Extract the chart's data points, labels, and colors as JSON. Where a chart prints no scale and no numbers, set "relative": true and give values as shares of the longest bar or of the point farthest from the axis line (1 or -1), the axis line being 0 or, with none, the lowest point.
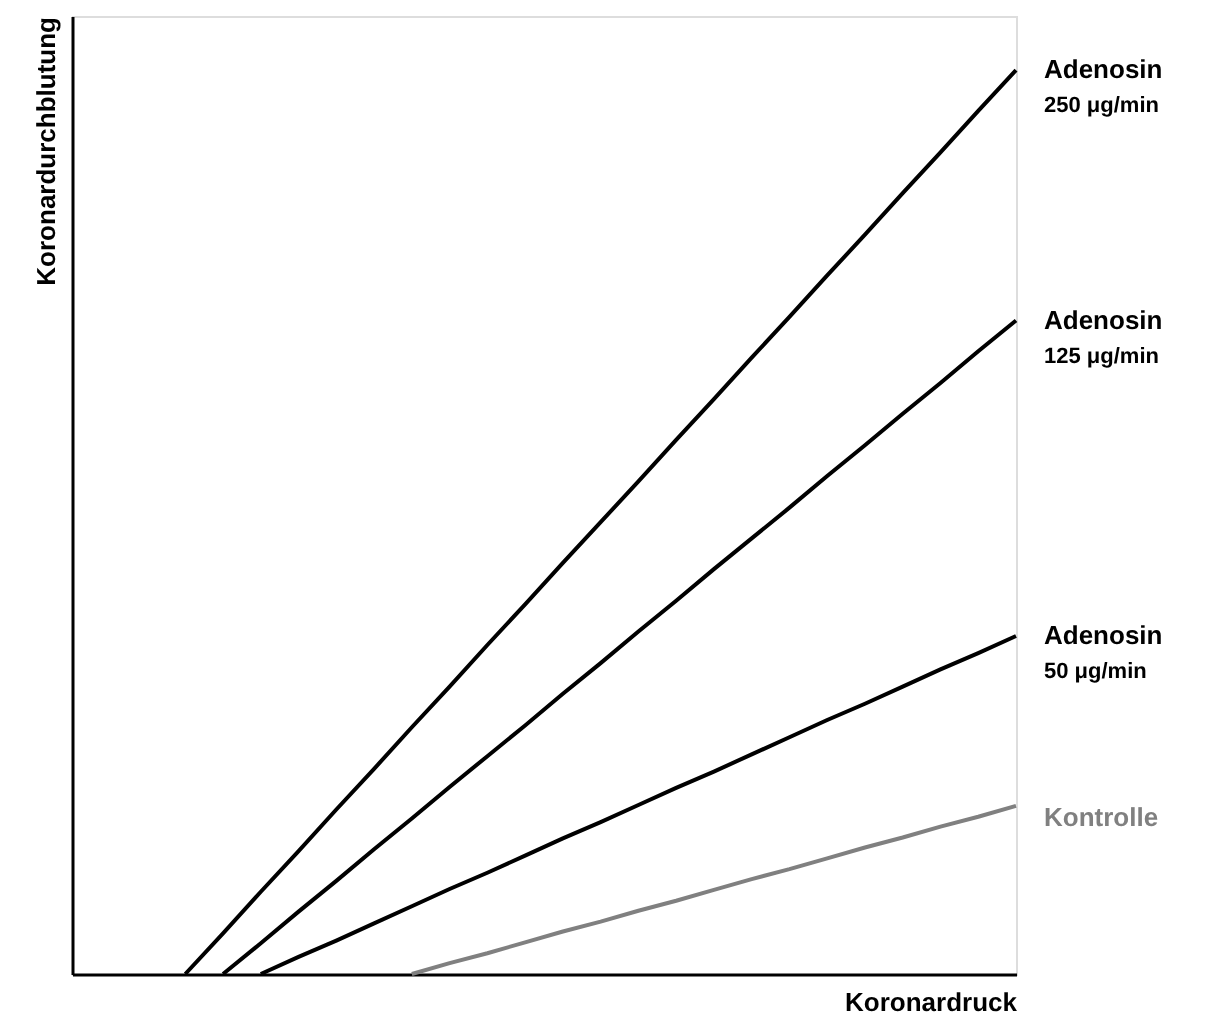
{
  "chart_data": {
    "type": "line",
    "relative": true,
    "xlabel": "Koronardruck",
    "ylabel": "Koronardurchblutung",
    "grid": false,
    "marker": "none",
    "line_style": "solid",
    "categories": [
      null,
      null,
      null,
      null,
      null,
      null,
      null,
      null,
      null,
      null,
      null,
      null,
      null,
      null,
      null,
      null,
      null,
      null,
      null,
      null,
      null,
      null,
      null,
      null,
      null,
      null
    ],
    "series": [
      {
        "name": "Adenosin\n250 μg/min",
        "color": "#000000",
        "values": [
          null,
          null,
          null,
          0,
          0.045,
          0.091,
          0.136,
          0.182,
          0.227,
          0.273,
          0.318,
          0.364,
          0.409,
          0.455,
          0.5,
          0.545,
          0.591,
          0.636,
          0.682,
          0.727,
          0.773,
          0.818,
          0.864,
          0.909,
          0.955,
          1
        ]
      },
      {
        "name": "Adenosin\n125 μg/min",
        "color": "#000000",
        "values": [
          null,
          null,
          null,
          null,
          0,
          0.034,
          0.069,
          0.103,
          0.138,
          0.172,
          0.207,
          0.241,
          0.275,
          0.31,
          0.344,
          0.379,
          0.413,
          0.448,
          0.482,
          0.516,
          0.551,
          0.585,
          0.62,
          0.654,
          0.689,
          0.723
        ]
      },
      {
        "name": "Adenosin\n50 μg/min",
        "color": "#000000",
        "values": [
          null,
          null,
          null,
          null,
          null,
          0,
          0.019,
          0.037,
          0.056,
          0.075,
          0.094,
          0.112,
          0.131,
          0.15,
          0.168,
          0.187,
          0.206,
          0.224,
          0.243,
          0.262,
          0.281,
          0.299,
          0.318,
          0.337,
          0.355,
          0.374
        ]
      },
      {
        "name": "Kontrolle",
        "color": "#808080",
        "values": [
          null,
          null,
          null,
          null,
          null,
          null,
          null,
          null,
          null,
          0,
          0.012,
          0.023,
          0.035,
          0.047,
          0.058,
          0.07,
          0.081,
          0.093,
          0.105,
          0.116,
          0.128,
          0.14,
          0.151,
          0.163,
          0.174,
          0.186
        ]
      }
    ]
  }
}
